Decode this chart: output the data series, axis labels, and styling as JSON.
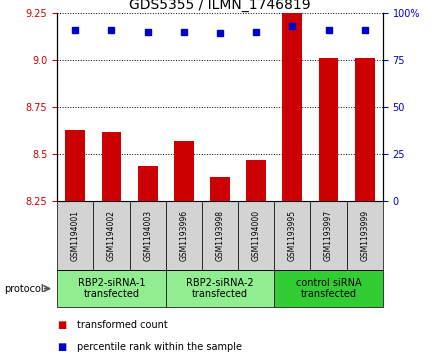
{
  "title": "GDS5355 / ILMN_1746819",
  "samples": [
    "GSM1194001",
    "GSM1194002",
    "GSM1194003",
    "GSM1193996",
    "GSM1193998",
    "GSM1194000",
    "GSM1193995",
    "GSM1193997",
    "GSM1193999"
  ],
  "bar_values": [
    8.63,
    8.62,
    8.44,
    8.57,
    8.38,
    8.47,
    9.25,
    9.01,
    9.01
  ],
  "percentile_values": [
    91,
    91,
    90,
    90,
    89,
    90,
    93,
    91,
    91
  ],
  "ylim_left": [
    8.25,
    9.25
  ],
  "ylim_right": [
    0,
    100
  ],
  "yticks_left": [
    8.25,
    8.5,
    8.75,
    9.0,
    9.25
  ],
  "yticks_right": [
    0,
    25,
    50,
    75,
    100
  ],
  "bar_color": "#cc0000",
  "dot_color": "#0000cc",
  "groups": [
    {
      "label": "RBP2-siRNA-1\ntransfected",
      "indices": [
        0,
        1,
        2
      ],
      "color": "#90ee90"
    },
    {
      "label": "RBP2-siRNA-2\ntransfected",
      "indices": [
        3,
        4,
        5
      ],
      "color": "#90ee90"
    },
    {
      "label": "control siRNA\ntransfected",
      "indices": [
        6,
        7,
        8
      ],
      "color": "#32cd32"
    }
  ],
  "sample_box_color": "#d3d3d3",
  "legend_items": [
    {
      "color": "#cc0000",
      "label": "transformed count"
    },
    {
      "color": "#0000cc",
      "label": "percentile rank within the sample"
    }
  ],
  "protocol_label": "protocol",
  "bar_width": 0.55,
  "title_fontsize": 10,
  "tick_fontsize": 7,
  "sample_fontsize": 5.5,
  "group_fontsize": 7,
  "legend_fontsize": 7
}
